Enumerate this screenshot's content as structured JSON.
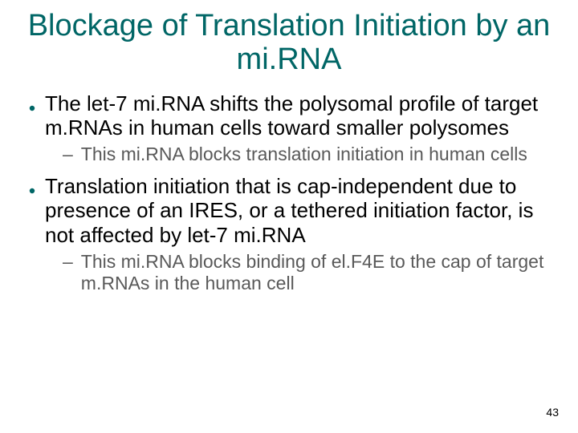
{
  "slide": {
    "title": "Blockage of Translation Initiation by an mi.RNA",
    "title_color": "#006666",
    "title_fontsize": 38,
    "body_color": "#000000",
    "l1_fontsize": 26,
    "l2_fontsize": 23,
    "l2_color": "#595959",
    "bullets": [
      {
        "text": "The let-7 mi.RNA shifts the polysomal profile of target m.RNAs in human cells toward smaller polysomes",
        "sub": [
          {
            "text": "This mi.RNA blocks translation initiation in human cells"
          }
        ]
      },
      {
        "text": "Translation initiation that is cap-independent due to presence of an IRES, or a tethered initiation factor, is not affected by let-7 mi.RNA",
        "sub": [
          {
            "text": "This mi.RNA blocks binding of el.F4E to the cap of target m.RNAs in the human cell"
          }
        ]
      }
    ],
    "page_number": "43",
    "page_number_fontsize": 14,
    "marker_fill": "#006666",
    "marker_size": 8,
    "background_color": "#ffffff"
  }
}
